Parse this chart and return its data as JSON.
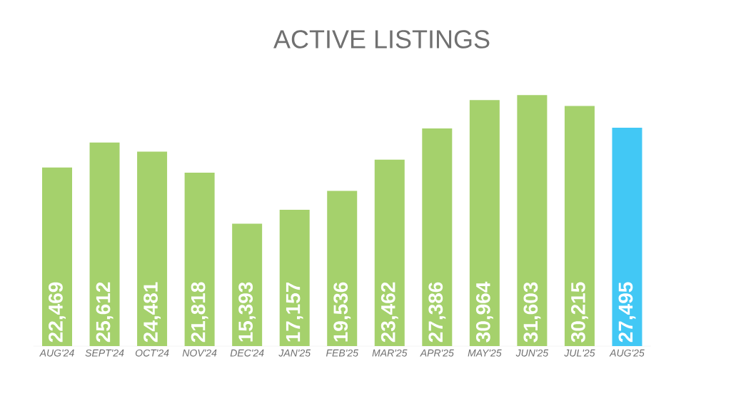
{
  "chart_data": {
    "type": "bar",
    "title": "ACTIVE LISTINGS",
    "categories": [
      "AUG'24",
      "SEPT'24",
      "OCT'24",
      "NOV'24",
      "DEC'24",
      "JAN'25",
      "FEB'25",
      "MAR'25",
      "APR'25",
      "MAY'25",
      "JUN'25",
      "JUL'25",
      "AUG'25"
    ],
    "values": [
      22469,
      25612,
      24481,
      21818,
      15393,
      17157,
      19536,
      23462,
      27386,
      30964,
      31603,
      30215,
      27495
    ],
    "value_labels": [
      "22,469",
      "25,612",
      "24,481",
      "21,818",
      "15,393",
      "17,157",
      "19,536",
      "23,462",
      "27,386",
      "30,964",
      "31,603",
      "30,215",
      "27,495"
    ],
    "colors": [
      "#a5d16c",
      "#a5d16c",
      "#a5d16c",
      "#a5d16c",
      "#a5d16c",
      "#a5d16c",
      "#a5d16c",
      "#a5d16c",
      "#a5d16c",
      "#a5d16c",
      "#a5d16c",
      "#a5d16c",
      "#42c8f5"
    ]
  }
}
